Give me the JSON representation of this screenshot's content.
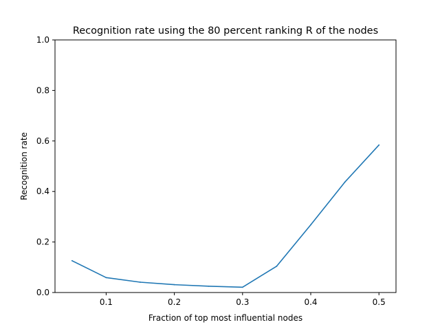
{
  "chart_data": {
    "type": "line",
    "title": "Recognition rate using the 80 percent ranking R of the nodes",
    "xlabel": "Fraction of top most influential nodes",
    "ylabel": "Recognition rate",
    "xlim": [
      0.025,
      0.525
    ],
    "ylim": [
      0.0,
      1.0
    ],
    "xticks": [
      0.1,
      0.2,
      0.3,
      0.4,
      0.5
    ],
    "xtick_labels": [
      "0.1",
      "0.2",
      "0.3",
      "0.4",
      "0.5"
    ],
    "yticks": [
      0.0,
      0.2,
      0.4,
      0.6,
      0.8,
      1.0
    ],
    "ytick_labels": [
      "0.0",
      "0.2",
      "0.4",
      "0.6",
      "0.8",
      "1.0"
    ],
    "grid": false,
    "series": [
      {
        "color": "#1f77b4",
        "x": [
          0.05,
          0.1,
          0.15,
          0.2,
          0.25,
          0.3,
          0.35,
          0.4,
          0.45,
          0.5
        ],
        "y": [
          0.126,
          0.059,
          0.041,
          0.031,
          0.025,
          0.021,
          0.104,
          0.268,
          0.437,
          0.584
        ]
      }
    ]
  }
}
